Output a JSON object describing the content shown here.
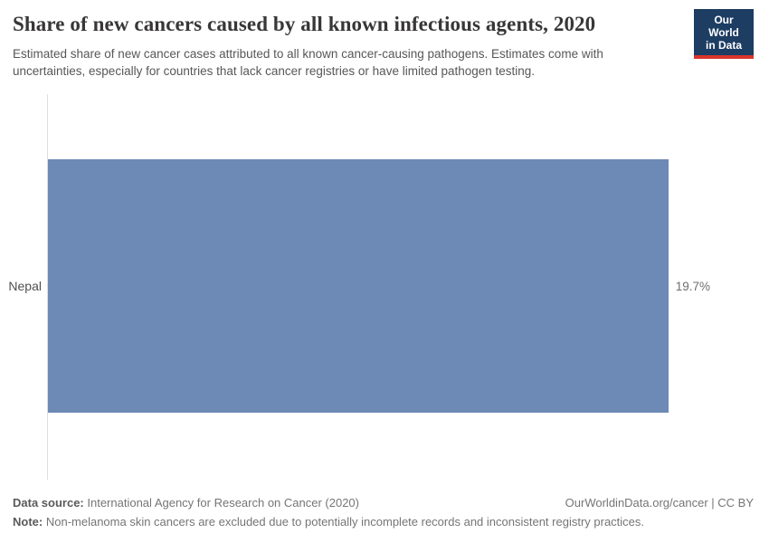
{
  "chart_data": {
    "type": "bar",
    "orientation": "horizontal",
    "title": "Share of new cancers caused by all known infectious agents, 2020",
    "subtitle": "Estimated share of new cancer cases attributed to all known cancer-causing pathogens. Estimates come with\nuncertainties, especially for countries that lack cancer registries or have limited pathogen testing.",
    "categories": [
      "Nepal"
    ],
    "values": [
      19.7
    ],
    "value_labels": [
      "19.7%"
    ],
    "unit": "%",
    "xlim": [
      0,
      19.7
    ],
    "grid": false,
    "legend": false,
    "bar_color": "#6d89b5",
    "axis_color": "#dedede"
  },
  "brand": {
    "logo_line1": "Our World",
    "logo_line2": "in Data",
    "logo_navy": "#1d3d63",
    "logo_red": "#d8352b"
  },
  "footer": {
    "data_source_label": "Data source:",
    "data_source_text": "International Agency for Research on Cancer (2020)",
    "attribution": "OurWorldinData.org/cancer | CC BY",
    "note_label": "Note:",
    "note_text": "Non-melanoma skin cancers are excluded due to potentially incomplete records and inconsistent registry practices."
  }
}
